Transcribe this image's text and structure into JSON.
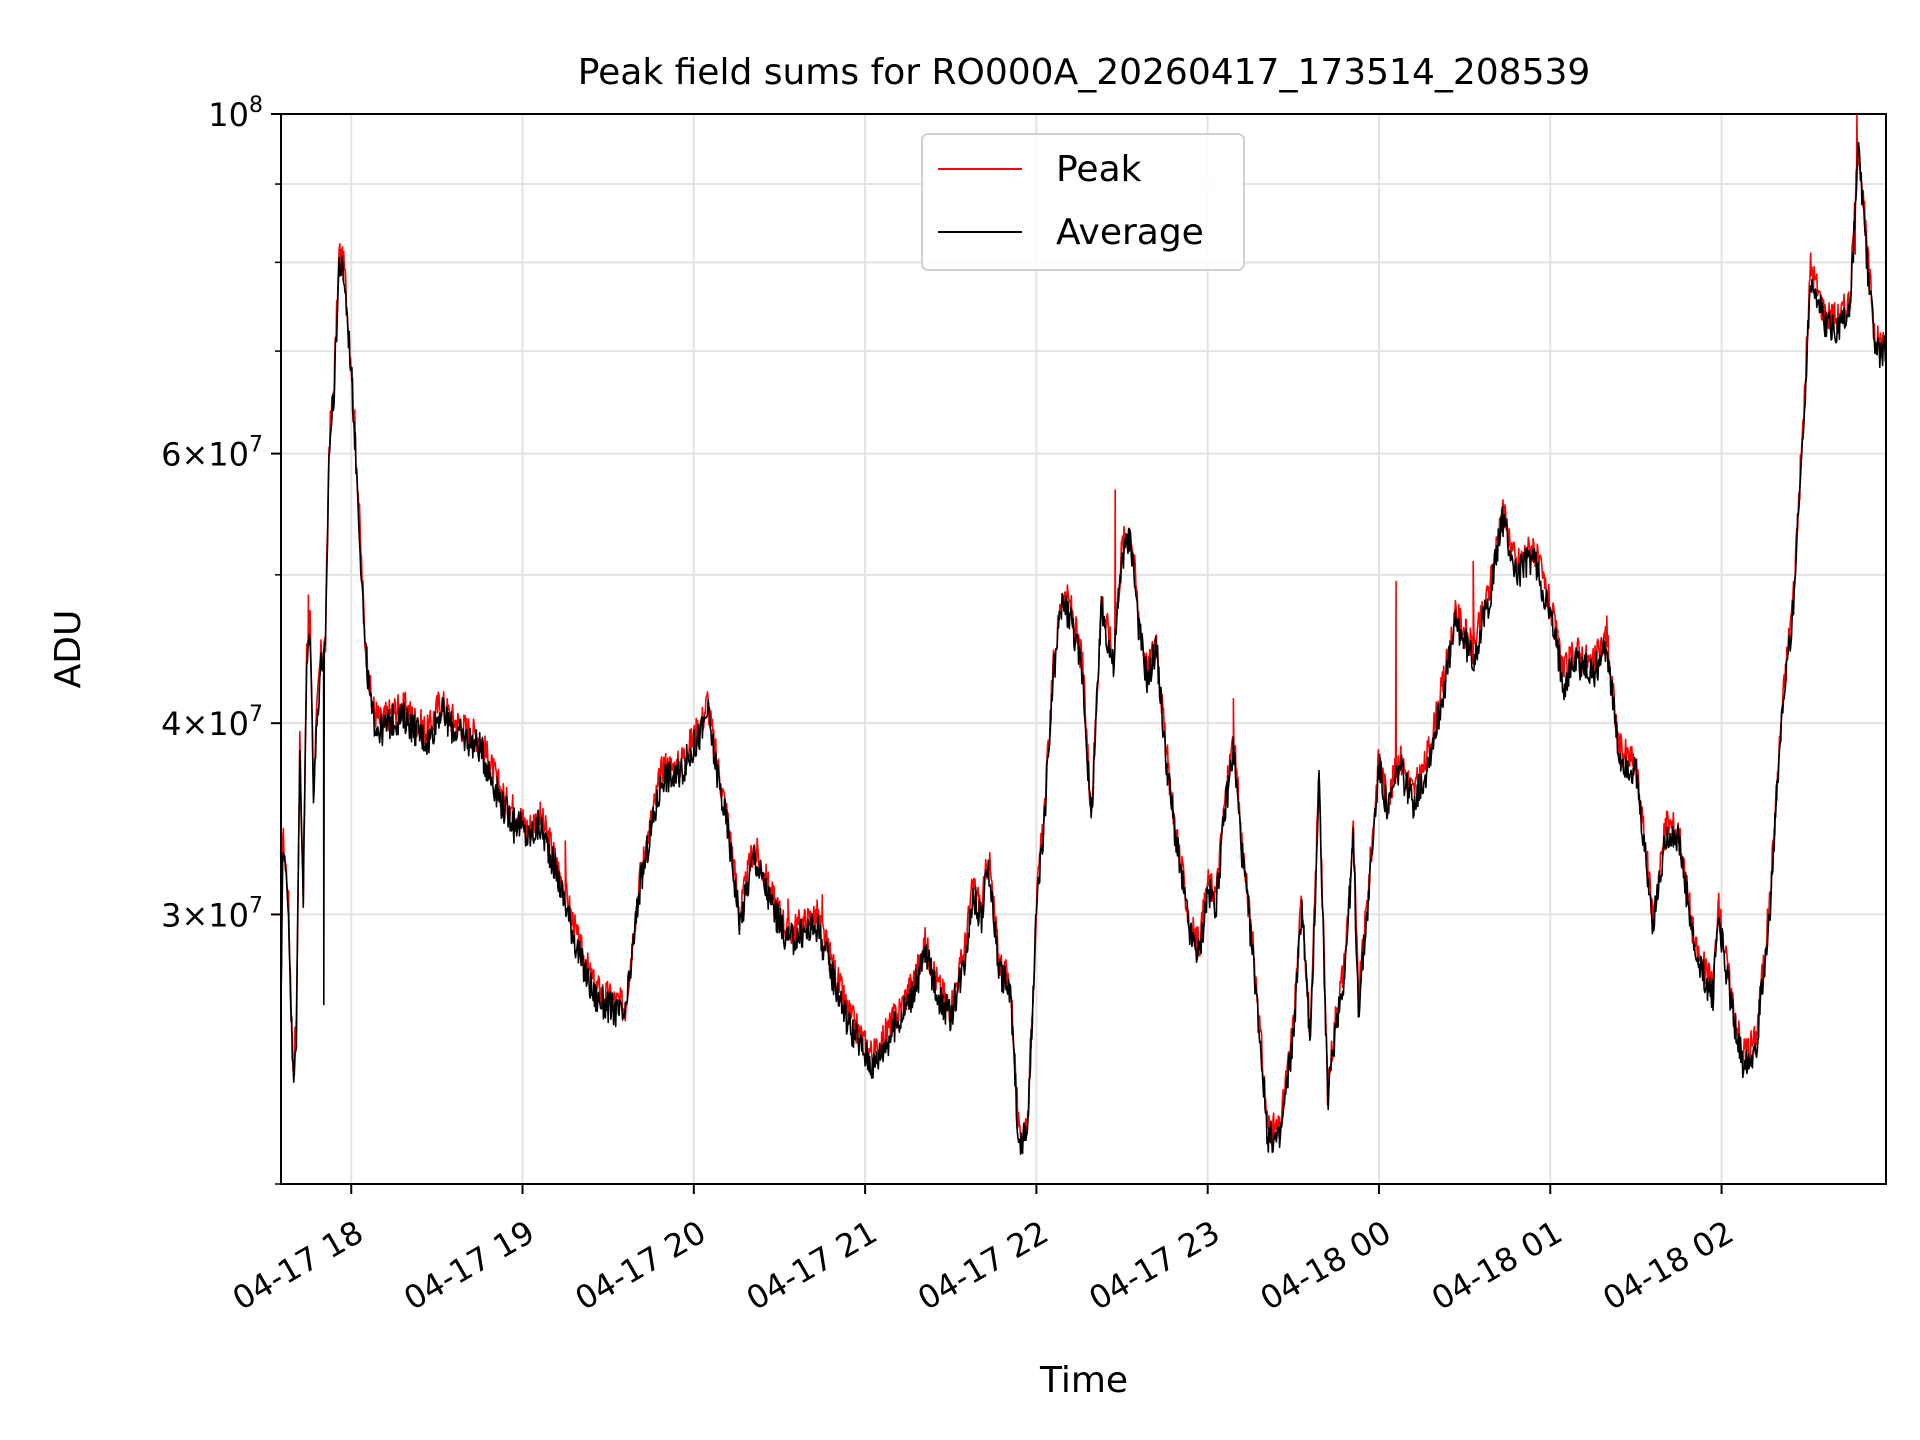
{
  "chart_data": {
    "type": "line",
    "title": "Peak field sums for RO000A_20260417_173514_208539",
    "xlabel": "Time",
    "ylabel": "ADU",
    "yscale": "log",
    "xlim_hours": [
      17.59,
      26.96
    ],
    "ylim": [
      20000000,
      100000000
    ],
    "grid": true,
    "legend_position": "upper-center",
    "x_tick_labels": [
      {
        "hour": 18,
        "label": "04-17 18"
      },
      {
        "hour": 19,
        "label": "04-17 19"
      },
      {
        "hour": 20,
        "label": "04-17 20"
      },
      {
        "hour": 21,
        "label": "04-17 21"
      },
      {
        "hour": 22,
        "label": "04-17 22"
      },
      {
        "hour": 23,
        "label": "04-17 23"
      },
      {
        "hour": 24,
        "label": "04-18 00"
      },
      {
        "hour": 25,
        "label": "04-18 01"
      },
      {
        "hour": 26,
        "label": "04-18 02"
      }
    ],
    "y_tick_labels": [
      {
        "value": 30000000,
        "mant": "3",
        "exp": "7"
      },
      {
        "value": 40000000,
        "mant": "4",
        "exp": "7"
      },
      {
        "value": 60000000,
        "mant": "6",
        "exp": "7"
      },
      {
        "value": 100000000,
        "mant": "10",
        "exp": "8"
      }
    ],
    "y_minor_gridlines": [
      20000000,
      50000000,
      70000000,
      80000000,
      90000000
    ],
    "series": [
      {
        "name": "Peak",
        "color": "#ff0000",
        "offset_ratio": 1.015,
        "spikes": [
          [
            17.75,
            48500000
          ],
          [
            18.9,
            35800000
          ],
          [
            19.25,
            33500000
          ],
          [
            20.55,
            30700000
          ],
          [
            20.75,
            30900000
          ],
          [
            22.46,
            56800000
          ],
          [
            23.15,
            41500000
          ],
          [
            24.1,
            49500000
          ],
          [
            24.55,
            51000000
          ],
          [
            25.33,
            47000000
          ],
          [
            26.79,
            100000000
          ],
          [
            26.78,
            81000000
          ]
        ]
      },
      {
        "name": "Average",
        "color": "#000000",
        "offset_ratio": 1.0,
        "spikes": [
          [
            17.84,
            26200000
          ],
          [
            18.95,
            33400000
          ]
        ]
      }
    ],
    "average_series_points": [
      [
        17.59,
        25800000
      ],
      [
        17.6,
        33300000
      ],
      [
        17.62,
        31600000
      ],
      [
        17.63,
        31000000
      ],
      [
        17.66,
        23600000
      ],
      [
        17.68,
        25100000
      ],
      [
        17.7,
        38500000
      ],
      [
        17.72,
        30800000
      ],
      [
        17.74,
        43500000
      ],
      [
        17.76,
        46000000
      ],
      [
        17.78,
        36200000
      ],
      [
        17.8,
        40000000
      ],
      [
        17.82,
        43500000
      ],
      [
        17.85,
        44500000
      ],
      [
        17.87,
        60000000
      ],
      [
        17.9,
        66000000
      ],
      [
        17.93,
        80000000
      ],
      [
        17.96,
        78000000
      ],
      [
        18.0,
        68000000
      ],
      [
        18.04,
        56000000
      ],
      [
        18.08,
        44800000
      ],
      [
        18.12,
        40500000
      ],
      [
        18.17,
        39500000
      ],
      [
        18.25,
        40200000
      ],
      [
        18.32,
        40300000
      ],
      [
        18.38,
        39500000
      ],
      [
        18.45,
        38900000
      ],
      [
        18.52,
        40800000
      ],
      [
        18.58,
        39800000
      ],
      [
        18.65,
        39200000
      ],
      [
        18.75,
        38600000
      ],
      [
        18.82,
        36800000
      ],
      [
        18.9,
        35000000
      ],
      [
        18.97,
        34500000
      ],
      [
        19.03,
        33600000
      ],
      [
        19.1,
        34300000
      ],
      [
        19.17,
        32700000
      ],
      [
        19.25,
        30500000
      ],
      [
        19.33,
        28200000
      ],
      [
        19.42,
        26500000
      ],
      [
        19.5,
        26100000
      ],
      [
        19.6,
        25700000
      ],
      [
        19.68,
        31000000
      ],
      [
        19.75,
        34000000
      ],
      [
        19.82,
        37000000
      ],
      [
        19.9,
        36800000
      ],
      [
        19.97,
        38000000
      ],
      [
        20.05,
        39600000
      ],
      [
        20.08,
        40800000
      ],
      [
        20.12,
        38000000
      ],
      [
        20.2,
        34000000
      ],
      [
        20.27,
        29600000
      ],
      [
        20.35,
        32800000
      ],
      [
        20.45,
        30500000
      ],
      [
        20.55,
        28800000
      ],
      [
        20.65,
        29200000
      ],
      [
        20.72,
        29500000
      ],
      [
        20.8,
        27600000
      ],
      [
        20.9,
        25500000
      ],
      [
        21.0,
        24300000
      ],
      [
        21.05,
        23900000
      ],
      [
        21.12,
        24700000
      ],
      [
        21.2,
        25600000
      ],
      [
        21.3,
        27000000
      ],
      [
        21.35,
        28300000
      ],
      [
        21.43,
        26500000
      ],
      [
        21.5,
        25700000
      ],
      [
        21.58,
        28000000
      ],
      [
        21.63,
        30900000
      ],
      [
        21.68,
        29800000
      ],
      [
        21.72,
        32400000
      ],
      [
        21.78,
        27700000
      ],
      [
        21.85,
        26500000
      ],
      [
        21.9,
        21000000
      ],
      [
        21.95,
        21800000
      ],
      [
        22.0,
        30000000
      ],
      [
        22.05,
        35000000
      ],
      [
        22.1,
        43000000
      ],
      [
        22.15,
        48000000
      ],
      [
        22.2,
        47000000
      ],
      [
        22.27,
        43000000
      ],
      [
        22.32,
        34500000
      ],
      [
        22.38,
        47500000
      ],
      [
        22.45,
        43500000
      ],
      [
        22.5,
        51500000
      ],
      [
        22.55,
        53000000
      ],
      [
        22.6,
        46000000
      ],
      [
        22.65,
        42500000
      ],
      [
        22.7,
        45000000
      ],
      [
        22.75,
        38500000
      ],
      [
        22.8,
        34500000
      ],
      [
        22.85,
        31500000
      ],
      [
        22.9,
        29000000
      ],
      [
        22.95,
        28200000
      ],
      [
        23.0,
        31000000
      ],
      [
        23.05,
        30500000
      ],
      [
        23.1,
        35000000
      ],
      [
        23.15,
        38500000
      ],
      [
        23.2,
        33000000
      ],
      [
        23.28,
        27000000
      ],
      [
        23.35,
        21500000
      ],
      [
        23.42,
        21300000
      ],
      [
        23.5,
        25000000
      ],
      [
        23.55,
        30500000
      ],
      [
        23.6,
        24500000
      ],
      [
        23.65,
        37000000
      ],
      [
        23.7,
        22700000
      ],
      [
        23.75,
        25500000
      ],
      [
        23.8,
        27500000
      ],
      [
        23.85,
        33500000
      ],
      [
        23.88,
        26000000
      ],
      [
        23.93,
        30000000
      ],
      [
        24.0,
        37500000
      ],
      [
        24.05,
        35000000
      ],
      [
        24.12,
        37500000
      ],
      [
        24.2,
        35500000
      ],
      [
        24.27,
        37000000
      ],
      [
        24.35,
        40500000
      ],
      [
        24.45,
        46500000
      ],
      [
        24.55,
        44000000
      ],
      [
        24.65,
        48500000
      ],
      [
        24.72,
        54500000
      ],
      [
        24.8,
        50000000
      ],
      [
        24.9,
        51500000
      ],
      [
        25.0,
        47000000
      ],
      [
        25.08,
        42500000
      ],
      [
        25.15,
        44000000
      ],
      [
        25.25,
        43000000
      ],
      [
        25.33,
        45000000
      ],
      [
        25.4,
        38000000
      ],
      [
        25.5,
        37000000
      ],
      [
        25.6,
        29500000
      ],
      [
        25.68,
        34000000
      ],
      [
        25.75,
        33500000
      ],
      [
        25.85,
        28000000
      ],
      [
        25.95,
        26500000
      ],
      [
        25.98,
        30000000
      ],
      [
        26.05,
        26500000
      ],
      [
        26.12,
        24000000
      ],
      [
        26.2,
        24500000
      ],
      [
        26.28,
        30000000
      ],
      [
        26.35,
        40000000
      ],
      [
        26.42,
        48000000
      ],
      [
        26.48,
        63000000
      ],
      [
        26.52,
        78500000
      ],
      [
        26.6,
        73000000
      ],
      [
        26.68,
        72500000
      ],
      [
        26.75,
        74500000
      ],
      [
        26.8,
        95000000
      ],
      [
        26.85,
        80000000
      ],
      [
        26.9,
        70000000
      ],
      [
        26.96,
        70000000
      ]
    ]
  }
}
